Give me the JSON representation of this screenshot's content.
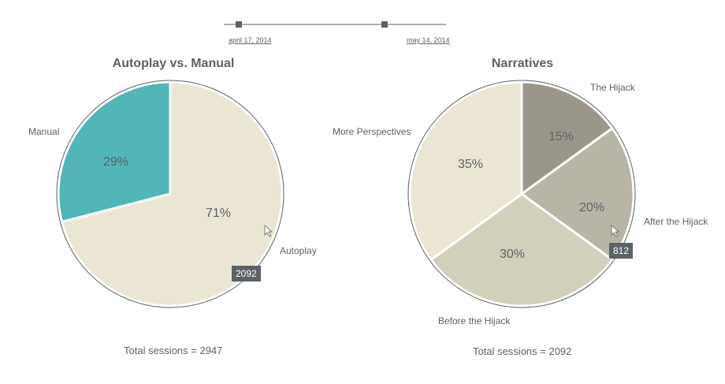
{
  "slider": {
    "start_label": "april 17, 2014",
    "end_label": "may 14, 2014"
  },
  "colors": {
    "text": "#5b6265",
    "outline": "#5b6265",
    "slice_border": "#ffffff"
  },
  "chart_data": [
    {
      "type": "pie",
      "title": "Autoplay vs. Manual",
      "categories": [
        "Manual",
        "Autoplay"
      ],
      "values": [
        855,
        2092
      ],
      "percent_labels": [
        "29%",
        "71%"
      ],
      "colors": [
        "#52b5b8",
        "#ebe6d4"
      ],
      "tooltip": "2092",
      "total_label": "Total sessions = 2947"
    },
    {
      "type": "pie",
      "title": "Narratives",
      "categories": [
        "The Hijack",
        "After the Hijack",
        "Before the Hijack",
        "More Perspectives"
      ],
      "values": [
        314,
        418,
        628,
        732
      ],
      "percent_labels": [
        "15%",
        "20%",
        "30%",
        "35%"
      ],
      "colors": [
        "#9a978a",
        "#b8b4a6",
        "#d2cfbb",
        "#ebe6d4"
      ],
      "tooltip": "812",
      "total_label": "Total sessions = 2092"
    }
  ]
}
